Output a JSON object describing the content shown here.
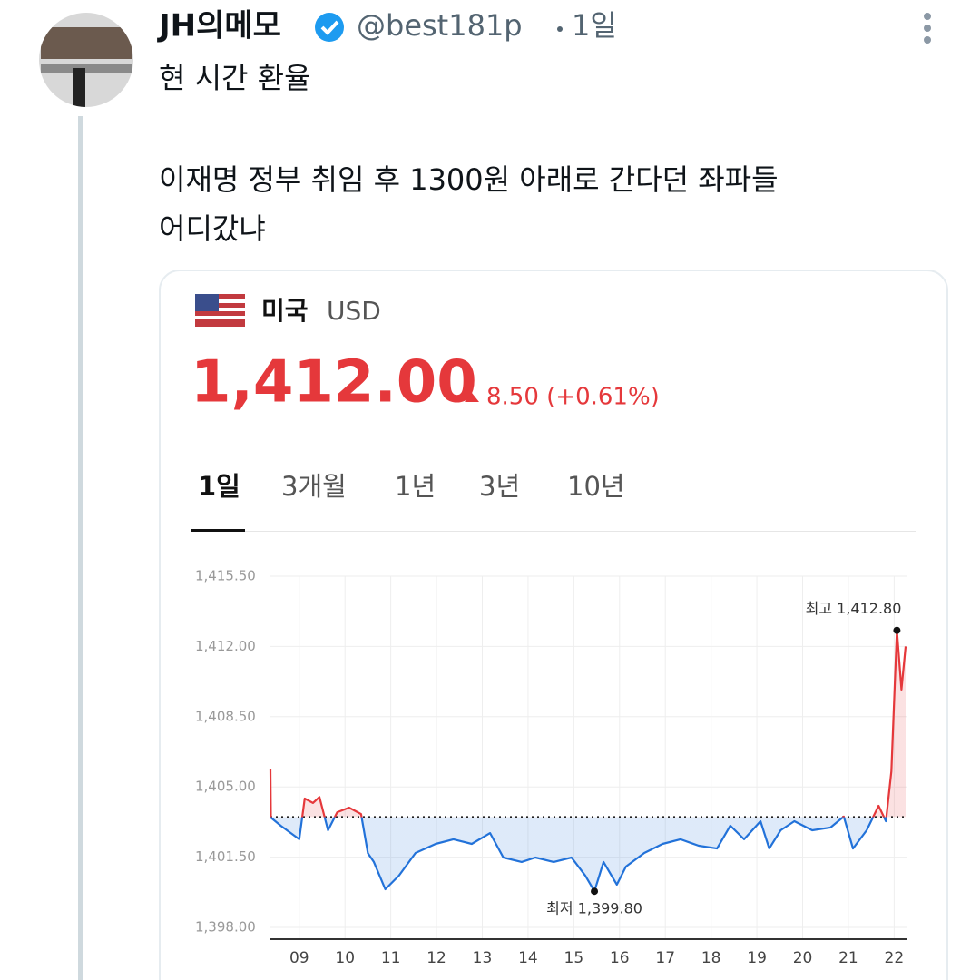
{
  "tweet": {
    "author": "JH의메모",
    "handle": "@best181p",
    "time": "1일",
    "text": [
      "현 시간 환율",
      "이재명 정부 취임 후 1300원 아래로 간다던 좌파들",
      "어디갔냐"
    ]
  },
  "card": {
    "country": "미국",
    "currency": "USD",
    "price": "1,412.00",
    "change": "8.50 (+0.61%)",
    "tabs": [
      "1일",
      "3개월",
      "1년",
      "3년",
      "10년"
    ]
  },
  "chart_data": {
    "type": "line",
    "x": [
      8.37,
      8.38,
      8.6,
      9.0,
      9.12,
      9.3,
      9.44,
      9.63,
      9.83,
      10.09,
      10.35,
      10.5,
      10.63,
      10.88,
      11.18,
      11.54,
      11.98,
      12.37,
      12.77,
      13.17,
      13.46,
      13.86,
      14.16,
      14.56,
      14.95,
      15.25,
      15.45,
      15.65,
      15.94,
      16.14,
      16.54,
      16.94,
      17.33,
      17.73,
      18.13,
      18.42,
      18.72,
      19.08,
      19.27,
      19.52,
      19.82,
      20.21,
      20.61,
      20.9,
      21.1,
      21.4,
      21.66,
      21.82,
      21.94,
      22.06,
      22.16,
      22.25
    ],
    "values": [
      1405.87,
      1403.47,
      1403.06,
      1402.39,
      1404.42,
      1404.2,
      1404.5,
      1402.84,
      1403.74,
      1403.97,
      1403.65,
      1401.7,
      1401.26,
      1399.9,
      1400.58,
      1401.71,
      1402.16,
      1402.39,
      1402.16,
      1402.7,
      1401.48,
      1401.26,
      1401.48,
      1401.26,
      1401.48,
      1400.58,
      1399.8,
      1401.26,
      1400.13,
      1401.03,
      1401.71,
      1402.16,
      1402.39,
      1402.07,
      1401.93,
      1403.07,
      1402.39,
      1403.29,
      1401.93,
      1402.84,
      1403.29,
      1402.84,
      1402.98,
      1403.52,
      1401.93,
      1402.84,
      1404.06,
      1403.29,
      1405.78,
      1412.8,
      1409.85,
      1412.0
    ],
    "reference": 1403.5,
    "colors": {
      "above": "#e5383b",
      "below": "#2272d9"
    },
    "xlim": [
      8.37,
      22.29
    ],
    "ylim": [
      1398,
      1415.5
    ],
    "xticks": [
      {
        "value": 9,
        "label": "09"
      },
      10,
      11,
      12,
      13,
      14,
      15,
      16,
      17,
      18,
      19,
      20,
      21,
      22
    ],
    "yticks": [
      {
        "value": 1415.5,
        "label": "1,415.50"
      },
      {
        "value": 1412,
        "label": "1,412.00"
      },
      {
        "value": 1408.5,
        "label": "1,408.50"
      },
      {
        "value": 1405,
        "label": "1,405.00"
      },
      {
        "value": 1401.5,
        "label": "1,401.50"
      },
      {
        "value": 1398,
        "label": "1,398.00"
      }
    ],
    "grid": true,
    "annotations": [
      {
        "label": "최고 1,412.80",
        "x": 22.06,
        "value": 1412.8
      },
      {
        "label": "최저 1,399.80",
        "x": 15.45,
        "value": 1399.8
      }
    ]
  }
}
